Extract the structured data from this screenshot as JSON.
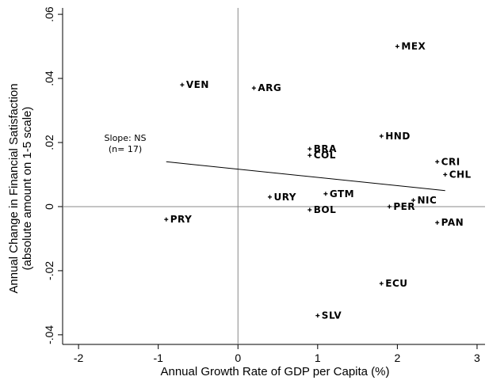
{
  "chart_data": {
    "type": "scatter",
    "xlabel": "Annual Growth Rate of GDP per Capita (%)",
    "ylabel_line1": "Annual Change in Financial Satisfaction",
    "ylabel_line2": "(absolute amount on 1-5 scale)",
    "xlim": [
      -2.2,
      3.1
    ],
    "ylim": [
      -0.043,
      0.062
    ],
    "x_ticks": [
      -2,
      -1,
      0,
      1,
      2,
      3
    ],
    "x_tick_labels": [
      "-2",
      "-1",
      "0",
      "1",
      "2",
      "3"
    ],
    "y_ticks": [
      -0.04,
      -0.02,
      0,
      0.02,
      0.04,
      0.06
    ],
    "y_tick_labels": [
      "-.04",
      "-.02",
      "0",
      ".02",
      ".04",
      ".06"
    ],
    "reference_lines": {
      "x": 0,
      "y": 0
    },
    "grid": false,
    "points": [
      {
        "label": "MEX",
        "x": 2.0,
        "y": 0.05
      },
      {
        "label": "VEN",
        "x": -0.7,
        "y": 0.038
      },
      {
        "label": "ARG",
        "x": 0.2,
        "y": 0.037
      },
      {
        "label": "HND",
        "x": 1.8,
        "y": 0.022
      },
      {
        "label": "BRA",
        "x": 0.9,
        "y": 0.018
      },
      {
        "label": "COL",
        "x": 0.9,
        "y": 0.016
      },
      {
        "label": "CRI",
        "x": 2.5,
        "y": 0.014
      },
      {
        "label": "CHL",
        "x": 2.6,
        "y": 0.01
      },
      {
        "label": "URY",
        "x": 0.4,
        "y": 0.003
      },
      {
        "label": "GTM",
        "x": 1.1,
        "y": 0.004
      },
      {
        "label": "NIC",
        "x": 2.2,
        "y": 0.002
      },
      {
        "label": "PER",
        "x": 1.9,
        "y": 0.0
      },
      {
        "label": "BOL",
        "x": 0.9,
        "y": -0.001
      },
      {
        "label": "PRY",
        "x": -0.9,
        "y": -0.004
      },
      {
        "label": "PAN",
        "x": 2.5,
        "y": -0.005
      },
      {
        "label": "ECU",
        "x": 1.8,
        "y": -0.024
      },
      {
        "label": "SLV",
        "x": 1.0,
        "y": -0.034
      }
    ],
    "fit_line": {
      "x": [
        -0.9,
        2.6
      ],
      "y": [
        0.014,
        0.005
      ]
    },
    "annotation": {
      "line1": "Slope: NS",
      "line2": "(n= 17)"
    }
  }
}
